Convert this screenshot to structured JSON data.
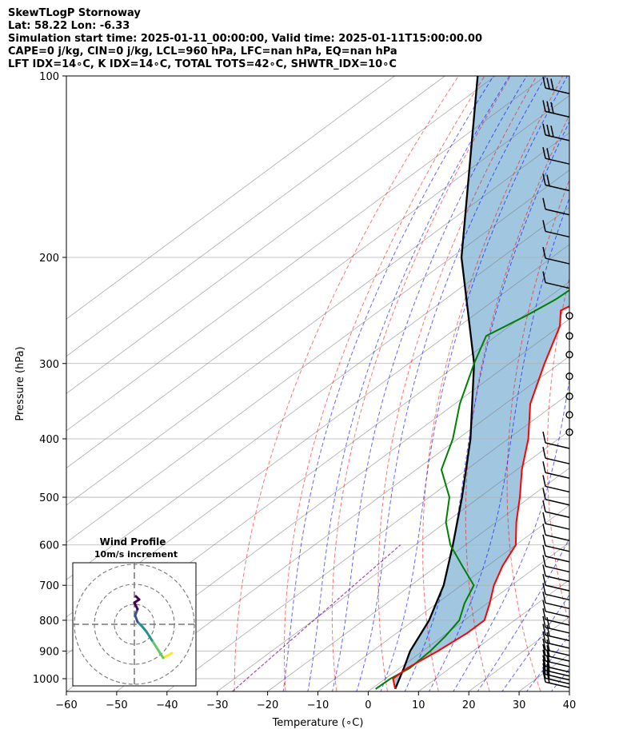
{
  "header": {
    "lines": [
      "SkewTLogP Stornoway",
      "Lat: 58.22   Lon: -6.33",
      "Simulation start time: 2025-01-11_00:00:00, Valid time: 2025-01-11T15:00:00.00",
      "CAPE=0 j/kg, CIN=0 j/kg, LCL=960 hPa, LFC=nan hPa, EQ=nan hPa",
      "LFT IDX=14∘C, K IDX=14∘C, TOTAL TOTS=42∘C, SHWTR_IDX=10∘C"
    ]
  },
  "chart_data": {
    "type": "line",
    "subtype": "skew-t log-p",
    "xlabel": "Temperature (∘C)",
    "ylabel": "Pressure (hPa)",
    "xlim": [
      -60,
      40
    ],
    "ylim": [
      1050,
      100
    ],
    "y_scale": "log",
    "x_ticks": [
      -60,
      -50,
      -40,
      -30,
      -20,
      -10,
      0,
      10,
      20,
      30,
      40
    ],
    "y_ticks": [
      100,
      200,
      300,
      400,
      500,
      600,
      700,
      800,
      900,
      1000
    ],
    "grid": true,
    "colors": {
      "temperature": "#ff0000",
      "dewpoint": "#008000",
      "parcel": "#000000",
      "cape_fill": "#1f77b4",
      "dry_adiabats": "#ff0000",
      "moist_adiabats": "#0000ff",
      "isotherms": "#808080",
      "mixing_ratio": "#800080"
    },
    "series": [
      {
        "id": "temperature",
        "points": [
          [
            4.7,
            1040
          ],
          [
            1.5,
            1000
          ],
          [
            1.5,
            960
          ],
          [
            3.0,
            900
          ],
          [
            4.0,
            840
          ],
          [
            4.0,
            800
          ],
          [
            0.5,
            750
          ],
          [
            -3.5,
            700
          ],
          [
            -7.0,
            650
          ],
          [
            -10.0,
            600
          ],
          [
            -16.0,
            550
          ],
          [
            -22.0,
            500
          ],
          [
            -29.0,
            450
          ],
          [
            -36.0,
            400
          ],
          [
            -45.0,
            350
          ],
          [
            -53.0,
            300
          ],
          [
            -60.0,
            260
          ],
          [
            -64.0,
            245
          ],
          [
            -63.0,
            238
          ],
          [
            -61.0,
            230
          ],
          [
            -62.0,
            210
          ],
          [
            -64.0,
            190
          ],
          [
            -68.5,
            170
          ],
          [
            -73.5,
            150
          ],
          [
            -76.0,
            135
          ],
          [
            -77.5,
            120
          ],
          [
            -79.5,
            110
          ],
          [
            -81.0,
            100
          ]
        ]
      },
      {
        "id": "dewpoint",
        "points": [
          [
            0.8,
            1040
          ],
          [
            1.0,
            1000
          ],
          [
            2.0,
            960
          ],
          [
            1.5,
            900
          ],
          [
            0.5,
            850
          ],
          [
            -1.0,
            800
          ],
          [
            -4.5,
            750
          ],
          [
            -7.5,
            700
          ],
          [
            -15.0,
            650
          ],
          [
            -23.0,
            600
          ],
          [
            -30.0,
            550
          ],
          [
            -36.0,
            500
          ],
          [
            -45.0,
            450
          ],
          [
            -51.0,
            400
          ],
          [
            -59.0,
            350
          ],
          [
            -67.0,
            300
          ],
          [
            -72.0,
            270
          ],
          [
            -69.5,
            250
          ],
          [
            -68.0,
            235
          ],
          [
            -67.5,
            220
          ],
          [
            -71.0,
            205
          ],
          [
            -74.5,
            190
          ],
          [
            -76.5,
            170
          ],
          [
            -79.0,
            150
          ],
          [
            -82.0,
            135
          ],
          [
            -86.0,
            120
          ],
          [
            -89.0,
            110
          ],
          [
            -91.0,
            100
          ]
        ]
      },
      {
        "id": "parcel",
        "points": [
          [
            4.7,
            1040
          ],
          [
            0.8,
            960
          ],
          [
            -2.5,
            900
          ],
          [
            -7.0,
            800
          ],
          [
            -13.5,
            700
          ],
          [
            -22.5,
            600
          ],
          [
            -33.5,
            500
          ],
          [
            -47.5,
            400
          ],
          [
            -67.0,
            300
          ],
          [
            -98.0,
            200
          ],
          [
            -143.5,
            100
          ]
        ]
      }
    ],
    "wind_barbs": {
      "pressures": [
        1035,
        1020,
        1005,
        990,
        975,
        955,
        935,
        915,
        890,
        865,
        840,
        815,
        790,
        765,
        740,
        715,
        690,
        665,
        640,
        615,
        590,
        565,
        540,
        515,
        490,
        465,
        440,
        415,
        390,
        365,
        340,
        315,
        290,
        270,
        250,
        225,
        205,
        185,
        170,
        155,
        140,
        128,
        117,
        107
      ],
      "barbs": [
        2,
        2,
        2,
        2,
        2,
        2,
        2,
        2,
        2,
        2,
        2,
        1,
        1,
        1,
        1,
        1,
        1,
        1,
        1,
        1,
        1,
        1,
        1,
        1,
        1,
        1,
        1,
        1,
        0,
        0,
        0,
        0,
        0,
        0,
        0,
        1,
        1,
        1,
        1,
        2,
        2,
        3,
        3,
        3
      ]
    },
    "inset": {
      "title": "Wind Profile",
      "subtitle": "10m/s increment",
      "colormap": [
        "#440154",
        "#3b528b",
        "#21918c",
        "#5ec962",
        "#fde725"
      ]
    }
  }
}
